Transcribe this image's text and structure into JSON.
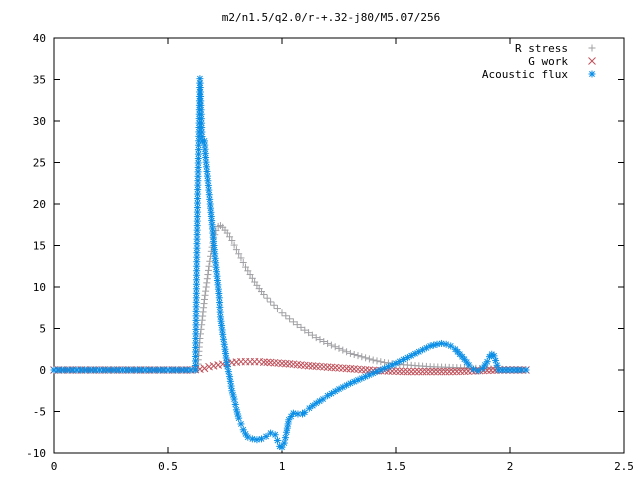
{
  "chart_data": {
    "type": "scatter",
    "title": "m2/n1.5/q2.0/r-+.32-j80/M5.07/256",
    "xlabel": "",
    "ylabel": "",
    "xlim": [
      0,
      2.5
    ],
    "ylim": [
      -10,
      40
    ],
    "xticks": [
      0,
      0.5,
      1,
      1.5,
      2,
      2.5
    ],
    "yticks": [
      -10,
      -5,
      0,
      5,
      10,
      15,
      20,
      25,
      30,
      35,
      40
    ],
    "xtick_labels": [
      "0",
      "0.5",
      "1",
      "1.5",
      "2",
      "2.5"
    ],
    "ytick_labels": [
      "-10",
      "-5",
      "0",
      "5",
      "10",
      "15",
      "20",
      "25",
      "30",
      "35",
      "40"
    ],
    "grid": false,
    "legend_position": "top-right",
    "series": [
      {
        "name": "R stress",
        "marker": "plus",
        "color": "#a0a0a4",
        "points": [
          [
            0.0,
            0
          ],
          [
            0.1,
            0
          ],
          [
            0.2,
            0
          ],
          [
            0.3,
            0
          ],
          [
            0.4,
            0
          ],
          [
            0.5,
            0
          ],
          [
            0.6,
            0
          ],
          [
            0.63,
            0.2
          ],
          [
            0.64,
            3.8
          ],
          [
            0.65,
            6
          ],
          [
            0.66,
            8.5
          ],
          [
            0.67,
            10.5
          ],
          [
            0.68,
            12.5
          ],
          [
            0.69,
            14.3
          ],
          [
            0.7,
            15.8
          ],
          [
            0.71,
            16.8
          ],
          [
            0.72,
            17.3
          ],
          [
            0.73,
            17.4
          ],
          [
            0.74,
            17.2
          ],
          [
            0.76,
            16.5
          ],
          [
            0.78,
            15.6
          ],
          [
            0.8,
            14.5
          ],
          [
            0.82,
            13.5
          ],
          [
            0.84,
            12.4
          ],
          [
            0.86,
            11.5
          ],
          [
            0.88,
            10.6
          ],
          [
            0.9,
            9.8
          ],
          [
            0.92,
            9.1
          ],
          [
            0.95,
            8.2
          ],
          [
            0.98,
            7.4
          ],
          [
            1.0,
            6.9
          ],
          [
            1.05,
            5.8
          ],
          [
            1.1,
            4.8
          ],
          [
            1.15,
            3.9
          ],
          [
            1.2,
            3.2
          ],
          [
            1.25,
            2.6
          ],
          [
            1.3,
            2.0
          ],
          [
            1.35,
            1.6
          ],
          [
            1.4,
            1.2
          ],
          [
            1.45,
            0.9
          ],
          [
            1.5,
            0.7
          ],
          [
            1.55,
            0.6
          ],
          [
            1.6,
            0.5
          ],
          [
            1.65,
            0.4
          ],
          [
            1.7,
            0.35
          ],
          [
            1.75,
            0.3
          ],
          [
            1.8,
            0.25
          ],
          [
            1.85,
            0.2
          ],
          [
            1.9,
            0.15
          ],
          [
            1.95,
            0.1
          ],
          [
            2.0,
            0.05
          ],
          [
            2.07,
            0
          ]
        ]
      },
      {
        "name": "G work",
        "marker": "cross",
        "color": "#c0505a",
        "points": [
          [
            0.0,
            0
          ],
          [
            0.1,
            0
          ],
          [
            0.2,
            0
          ],
          [
            0.3,
            0
          ],
          [
            0.4,
            0
          ],
          [
            0.5,
            0
          ],
          [
            0.6,
            0
          ],
          [
            0.64,
            0.1
          ],
          [
            0.66,
            0.2
          ],
          [
            0.68,
            0.4
          ],
          [
            0.7,
            0.5
          ],
          [
            0.72,
            0.6
          ],
          [
            0.74,
            0.7
          ],
          [
            0.76,
            0.8
          ],
          [
            0.78,
            0.9
          ],
          [
            0.8,
            0.95
          ],
          [
            0.82,
            1.0
          ],
          [
            0.84,
            1.0
          ],
          [
            0.86,
            1.0
          ],
          [
            0.88,
            1.0
          ],
          [
            0.9,
            1.0
          ],
          [
            0.92,
            0.95
          ],
          [
            0.95,
            0.9
          ],
          [
            1.0,
            0.8
          ],
          [
            1.05,
            0.7
          ],
          [
            1.1,
            0.55
          ],
          [
            1.15,
            0.45
          ],
          [
            1.2,
            0.35
          ],
          [
            1.25,
            0.25
          ],
          [
            1.3,
            0.15
          ],
          [
            1.35,
            0.05
          ],
          [
            1.4,
            -0.05
          ],
          [
            1.45,
            -0.1
          ],
          [
            1.5,
            -0.15
          ],
          [
            1.55,
            -0.2
          ],
          [
            1.6,
            -0.2
          ],
          [
            1.65,
            -0.2
          ],
          [
            1.7,
            -0.2
          ],
          [
            1.75,
            -0.2
          ],
          [
            1.8,
            -0.15
          ],
          [
            1.85,
            -0.1
          ],
          [
            1.9,
            -0.05
          ],
          [
            1.95,
            0
          ],
          [
            2.0,
            0
          ],
          [
            2.07,
            0
          ]
        ]
      },
      {
        "name": "Acoustic flux",
        "marker": "star",
        "color": "#0a8ee6",
        "points": [
          [
            0.0,
            0
          ],
          [
            0.05,
            0
          ],
          [
            0.1,
            0
          ],
          [
            0.15,
            0
          ],
          [
            0.2,
            0
          ],
          [
            0.25,
            0
          ],
          [
            0.3,
            0
          ],
          [
            0.35,
            0
          ],
          [
            0.4,
            0
          ],
          [
            0.45,
            0
          ],
          [
            0.5,
            0
          ],
          [
            0.55,
            0
          ],
          [
            0.6,
            0
          ],
          [
            0.62,
            0
          ],
          [
            0.63,
            21.2
          ],
          [
            0.64,
            35.1
          ],
          [
            0.65,
            27.6
          ],
          [
            0.66,
            27.6
          ],
          [
            0.665,
            25.6
          ],
          [
            0.675,
            22.8
          ],
          [
            0.685,
            20
          ],
          [
            0.695,
            17
          ],
          [
            0.705,
            14
          ],
          [
            0.715,
            11.3
          ],
          [
            0.725,
            8.7
          ],
          [
            0.73,
            6.4
          ],
          [
            0.74,
            4.3
          ],
          [
            0.75,
            2.5
          ],
          [
            0.76,
            0.4
          ],
          [
            0.77,
            -0.8
          ],
          [
            0.78,
            -2.5
          ],
          [
            0.79,
            -3.5
          ],
          [
            0.8,
            -4.8
          ],
          [
            0.81,
            -5.8
          ],
          [
            0.82,
            -6.5
          ],
          [
            0.83,
            -7.2
          ],
          [
            0.84,
            -7.7
          ],
          [
            0.85,
            -8.1
          ],
          [
            0.87,
            -8.3
          ],
          [
            0.89,
            -8.4
          ],
          [
            0.91,
            -8.3
          ],
          [
            0.93,
            -8.0
          ],
          [
            0.95,
            -7.6
          ],
          [
            0.97,
            -7.8
          ],
          [
            0.98,
            -8.5
          ],
          [
            0.99,
            -9.2
          ],
          [
            1.0,
            -9.3
          ],
          [
            1.01,
            -8.8
          ],
          [
            1.02,
            -7.5
          ],
          [
            1.03,
            -6.0
          ],
          [
            1.05,
            -5.2
          ],
          [
            1.07,
            -5.3
          ],
          [
            1.09,
            -5.3
          ],
          [
            1.1,
            -5.1
          ],
          [
            1.12,
            -4.6
          ],
          [
            1.15,
            -4.0
          ],
          [
            1.18,
            -3.5
          ],
          [
            1.2,
            -3.1
          ],
          [
            1.25,
            -2.3
          ],
          [
            1.3,
            -1.6
          ],
          [
            1.35,
            -1.0
          ],
          [
            1.4,
            -0.4
          ],
          [
            1.45,
            0.2
          ],
          [
            1.5,
            0.8
          ],
          [
            1.55,
            1.5
          ],
          [
            1.6,
            2.2
          ],
          [
            1.65,
            2.9
          ],
          [
            1.68,
            3.1
          ],
          [
            1.7,
            3.2
          ],
          [
            1.72,
            3.1
          ],
          [
            1.74,
            2.9
          ],
          [
            1.76,
            2.5
          ],
          [
            1.78,
            1.9
          ],
          [
            1.8,
            1.3
          ],
          [
            1.82,
            0.6
          ],
          [
            1.84,
            0.1
          ],
          [
            1.86,
            -0.1
          ],
          [
            1.88,
            0.2
          ],
          [
            1.9,
            1.0
          ],
          [
            1.91,
            1.6
          ],
          [
            1.92,
            1.9
          ],
          [
            1.93,
            1.7
          ],
          [
            1.95,
            0
          ],
          [
            2.0,
            0
          ],
          [
            2.05,
            0
          ],
          [
            2.07,
            0
          ]
        ]
      }
    ]
  }
}
